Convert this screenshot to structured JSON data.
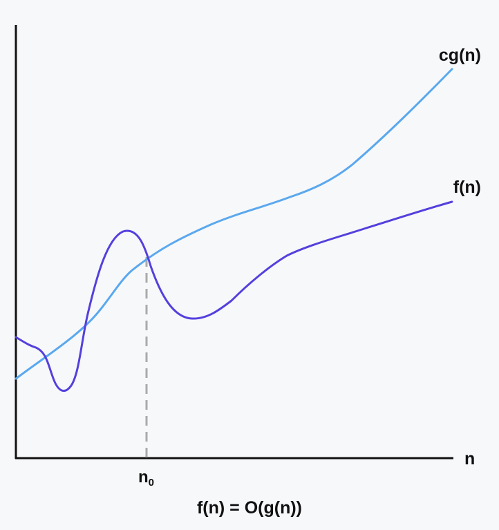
{
  "diagram": {
    "axis_x_label": "n",
    "threshold_label_base": "n",
    "threshold_label_sub": "0",
    "caption": "f(n) = O(g(n))",
    "curves": [
      {
        "key": "cg",
        "label": "cg(n)",
        "color": "#5aa8ee"
      },
      {
        "key": "f",
        "label": "f(n)",
        "color": "#5440dd"
      }
    ],
    "colors": {
      "background": "#f7f8fa",
      "axis": "#111111",
      "threshold_line": "#aaaaaa"
    }
  }
}
